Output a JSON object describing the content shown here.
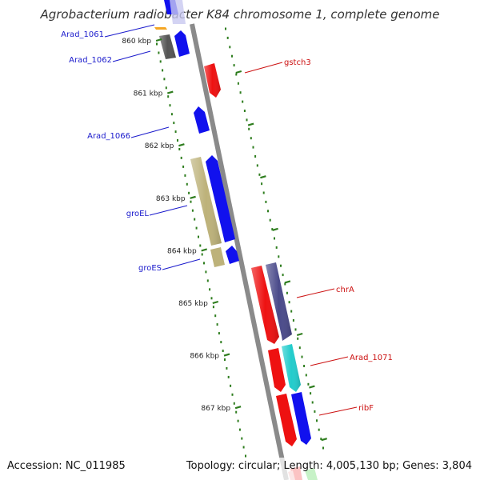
{
  "title": "Agrobacterium radiobacter K84 chromosome 1, complete genome",
  "footer": {
    "accession": "Accession: NC_011985",
    "summary": "Topology: circular; Length: 4,005,130 bp; Genes: 3,804"
  },
  "ticks": [
    "860 kbp",
    "861 kbp",
    "862 kbp",
    "863 kbp",
    "864 kbp",
    "865 kbp",
    "866 kbp",
    "867 kbp"
  ],
  "gene_labels": {
    "left": [
      "Arad_1061",
      "Arad_1062",
      "Arad_1066",
      "groEL",
      "groES"
    ],
    "right": [
      "gstch3",
      "chrA",
      "Arad_1071",
      "ribF"
    ]
  },
  "colors": {
    "backbone": "#8a8a8a",
    "tick_dots": "#2e7d1e",
    "left_label": "#1a1acc",
    "right_label": "#cc1111",
    "gene_red": "#ee1111",
    "gene_blue": "#1111ee",
    "gene_olive": "#bdb27a",
    "gene_gray": "#555555",
    "gene_purple": "#4a4a8a",
    "gene_cyan": "#22cccc",
    "gene_orange": "#f5a623",
    "gene_green": "#22cc22"
  }
}
